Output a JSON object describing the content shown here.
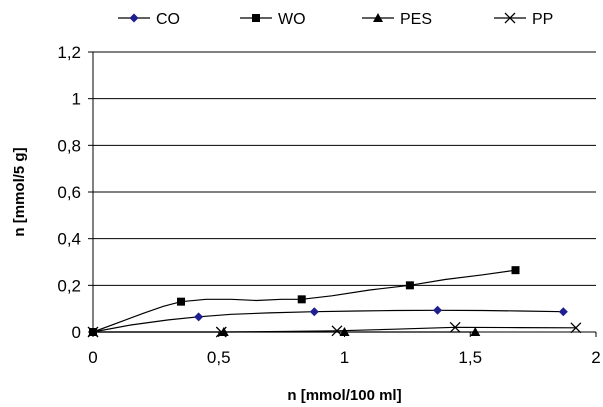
{
  "chart_data": {
    "type": "line",
    "xlabel": "n [mmol/100 ml]",
    "ylabel": "n [mmol/5 g]",
    "xlim": [
      0,
      2
    ],
    "ylim": [
      0,
      1.2
    ],
    "x_ticks": [
      0,
      0.5,
      1,
      1.5,
      2
    ],
    "x_tick_labels": [
      "0",
      "0,5",
      "1",
      "1,5",
      "2"
    ],
    "y_ticks": [
      0,
      0.2,
      0.4,
      0.6,
      0.8,
      1.0,
      1.2
    ],
    "y_tick_labels": [
      "0",
      "0,2",
      "0,4",
      "0,6",
      "0,8",
      "1",
      "1,2"
    ],
    "grid": "horizontal",
    "legend_position": "top",
    "series": [
      {
        "name": "CO",
        "marker": "diamond",
        "color": "#1f1f8f",
        "x": [
          0,
          0.42,
          0.88,
          1.37,
          1.87
        ],
        "y": [
          0,
          0.065,
          0.087,
          0.093,
          0.087
        ],
        "curve_x": [
          0,
          0.15,
          0.3,
          0.42,
          0.55,
          0.7,
          0.88,
          1.05,
          1.2,
          1.37,
          1.55,
          1.7,
          1.87
        ],
        "curve_y": [
          0,
          0.03,
          0.052,
          0.065,
          0.076,
          0.082,
          0.087,
          0.09,
          0.092,
          0.093,
          0.092,
          0.09,
          0.087
        ]
      },
      {
        "name": "WO",
        "marker": "square",
        "color": "#000000",
        "x": [
          0,
          0.35,
          0.83,
          1.26,
          1.68
        ],
        "y": [
          0,
          0.13,
          0.14,
          0.2,
          0.265
        ],
        "curve_x": [
          0,
          0.1,
          0.2,
          0.28,
          0.35,
          0.45,
          0.55,
          0.65,
          0.75,
          0.83,
          0.95,
          1.1,
          1.26,
          1.4,
          1.55,
          1.68
        ],
        "curve_y": [
          0,
          0.04,
          0.08,
          0.11,
          0.13,
          0.14,
          0.14,
          0.135,
          0.14,
          0.14,
          0.155,
          0.18,
          0.2,
          0.225,
          0.245,
          0.265
        ]
      },
      {
        "name": "PES",
        "marker": "triangle",
        "color": "#000000",
        "x": [
          0,
          0.52,
          1.0,
          1.52
        ],
        "y": [
          0,
          0,
          0,
          0
        ],
        "curve_x": [
          0,
          0.52,
          1.0,
          1.52
        ],
        "curve_y": [
          0,
          0,
          0,
          0
        ]
      },
      {
        "name": "PP",
        "marker": "x",
        "color": "#000000",
        "x": [
          0,
          0.51,
          0.97,
          1.44,
          1.92
        ],
        "y": [
          0,
          0,
          0.005,
          0.02,
          0.018
        ],
        "curve_x": [
          0,
          0.51,
          0.75,
          0.97,
          1.2,
          1.44,
          1.7,
          1.92
        ],
        "curve_y": [
          0,
          0,
          0.002,
          0.005,
          0.012,
          0.02,
          0.019,
          0.018
        ]
      }
    ]
  }
}
